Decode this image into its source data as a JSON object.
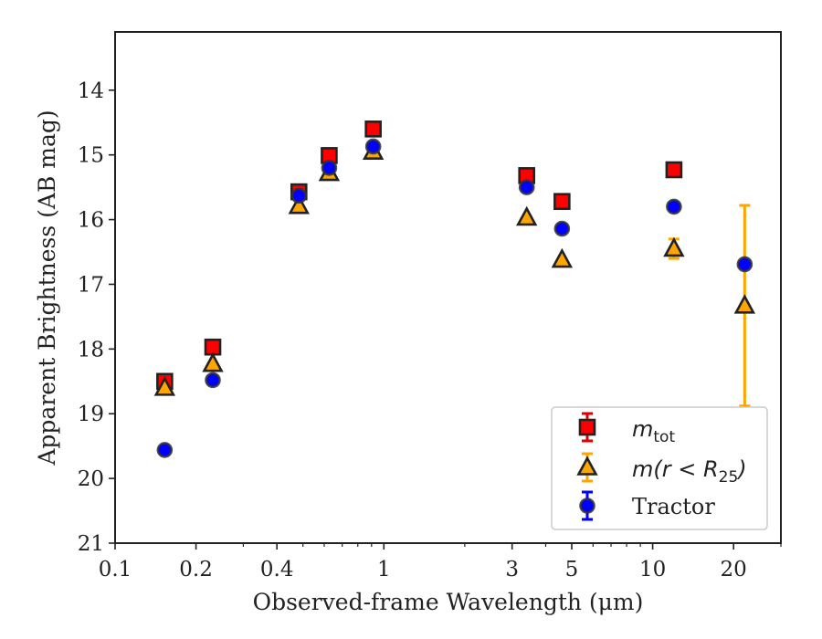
{
  "chart_data": {
    "type": "scatter",
    "xlabel": "Observed-frame Wavelength (μm)",
    "ylabel": "Apparent Brightness (AB mag)",
    "x_scale": "log",
    "y_inverted": true,
    "xlim": [
      0.1,
      30
    ],
    "ylim": [
      21,
      13.1
    ],
    "x_ticks": [
      {
        "value": 0.1,
        "label": "0.1"
      },
      {
        "value": 0.2,
        "label": "0.2"
      },
      {
        "value": 0.4,
        "label": "0.4"
      },
      {
        "value": 1,
        "label": "1"
      },
      {
        "value": 3,
        "label": "3"
      },
      {
        "value": 5,
        "label": "5"
      },
      {
        "value": 10,
        "label": "10"
      },
      {
        "value": 20,
        "label": "20"
      }
    ],
    "y_ticks": [
      {
        "value": 14,
        "label": "14"
      },
      {
        "value": 15,
        "label": "15"
      },
      {
        "value": 16,
        "label": "16"
      },
      {
        "value": 17,
        "label": "17"
      },
      {
        "value": 18,
        "label": "18"
      },
      {
        "value": 19,
        "label": "19"
      },
      {
        "value": 20,
        "label": "20"
      },
      {
        "value": 21,
        "label": "21"
      }
    ],
    "grid": false,
    "legend_position": "lower-right",
    "series": [
      {
        "name": "m_tot",
        "label_main": "m",
        "label_sub": "tot",
        "marker": "square",
        "color": "#ff0000",
        "errbar_color": "#e00000",
        "points": [
          {
            "x": 0.153,
            "y": 18.5
          },
          {
            "x": 0.231,
            "y": 17.97
          },
          {
            "x": 0.483,
            "y": 15.57
          },
          {
            "x": 0.626,
            "y": 15.01
          },
          {
            "x": 0.913,
            "y": 14.6
          },
          {
            "x": 3.4,
            "y": 15.32
          },
          {
            "x": 4.6,
            "y": 15.72
          },
          {
            "x": 12.0,
            "y": 15.23
          }
        ]
      },
      {
        "name": "m(r < R25)",
        "label_main": "m(r < R",
        "label_sub": "25",
        "label_end": ")",
        "marker": "triangle",
        "color": "#ffa500",
        "errbar_color": "#ffa500",
        "points": [
          {
            "x": 0.153,
            "y": 18.6
          },
          {
            "x": 0.231,
            "y": 18.23
          },
          {
            "x": 0.483,
            "y": 15.79
          },
          {
            "x": 0.626,
            "y": 15.28
          },
          {
            "x": 0.913,
            "y": 14.95
          },
          {
            "x": 3.4,
            "y": 15.97
          },
          {
            "x": 4.6,
            "y": 16.62
          },
          {
            "x": 12.0,
            "y": 16.45,
            "err": 0.15
          },
          {
            "x": 22.0,
            "y": 17.33,
            "err": 1.55
          }
        ]
      },
      {
        "name": "Tractor",
        "label_main": "Tractor",
        "marker": "circle",
        "color": "#0000ff",
        "errbar_color": "#0000ff",
        "points": [
          {
            "x": 0.153,
            "y": 19.56
          },
          {
            "x": 0.231,
            "y": 18.48
          },
          {
            "x": 0.483,
            "y": 15.63
          },
          {
            "x": 0.626,
            "y": 15.2
          },
          {
            "x": 0.913,
            "y": 14.87
          },
          {
            "x": 3.4,
            "y": 15.5
          },
          {
            "x": 4.6,
            "y": 16.14
          },
          {
            "x": 12.0,
            "y": 15.8
          },
          {
            "x": 22.0,
            "y": 16.69
          }
        ]
      }
    ]
  }
}
